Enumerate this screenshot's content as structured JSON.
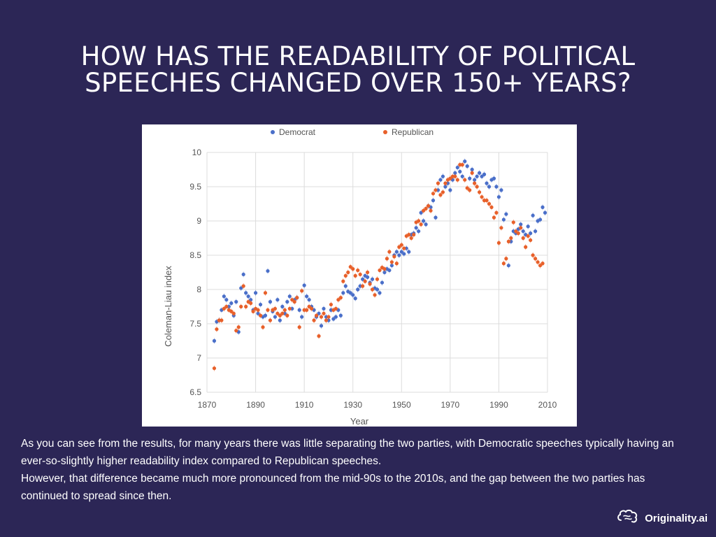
{
  "title": {
    "line1": "HOW HAS THE READABILITY OF POLITICAL",
    "line2": "SPEECHES CHANGED OVER 150+ YEARS?"
  },
  "body": {
    "para1": "As you can see from the results, for many years there was little separating the two parties, with Democratic speeches typically having an ever-so-slightly higher readability index compared to Republican speeches.",
    "para2": "However, that difference became much more pronounced from the mid-90s to the 2010s, and the gap between the two parties has continued to spread since then."
  },
  "brand": {
    "name": "Originality.ai",
    "icon": "brain-icon"
  },
  "colors": {
    "democrat": "#4a6fc9",
    "republican": "#e8602a",
    "background": "#2c2656"
  },
  "chart_data": {
    "type": "scatter",
    "title": "",
    "xlabel": "Year",
    "ylabel": "Coleman-Liau index",
    "xlim": [
      1870,
      2010
    ],
    "ylim": [
      6.5,
      10
    ],
    "xticks": [
      "1870",
      "1890",
      "1910",
      "1930",
      "1950",
      "1970",
      "1990",
      "2010"
    ],
    "yticks": [
      "6.5",
      "7",
      "7.5",
      "8",
      "8.5",
      "9",
      "9.5",
      "10"
    ],
    "legend": "top",
    "series": [
      {
        "name": "Democrat",
        "points": [
          [
            1873,
            7.25
          ],
          [
            1874,
            7.53
          ],
          [
            1875,
            7.55
          ],
          [
            1876,
            7.7
          ],
          [
            1877,
            7.9
          ],
          [
            1878,
            7.85
          ],
          [
            1879,
            7.75
          ],
          [
            1880,
            7.8
          ],
          [
            1881,
            7.62
          ],
          [
            1882,
            7.82
          ],
          [
            1883,
            7.38
          ],
          [
            1884,
            8.02
          ],
          [
            1885,
            8.22
          ],
          [
            1886,
            7.95
          ],
          [
            1887,
            7.9
          ],
          [
            1888,
            7.85
          ],
          [
            1889,
            7.7
          ],
          [
            1890,
            7.95
          ],
          [
            1891,
            7.65
          ],
          [
            1892,
            7.78
          ],
          [
            1893,
            7.6
          ],
          [
            1894,
            7.62
          ],
          [
            1895,
            8.27
          ],
          [
            1896,
            7.82
          ],
          [
            1897,
            7.68
          ],
          [
            1898,
            7.6
          ],
          [
            1899,
            7.85
          ],
          [
            1900,
            7.55
          ],
          [
            1901,
            7.75
          ],
          [
            1902,
            7.65
          ],
          [
            1903,
            7.82
          ],
          [
            1904,
            7.9
          ],
          [
            1905,
            7.72
          ],
          [
            1906,
            7.85
          ],
          [
            1907,
            7.88
          ],
          [
            1908,
            7.7
          ],
          [
            1909,
            7.6
          ],
          [
            1910,
            8.06
          ],
          [
            1911,
            7.9
          ],
          [
            1912,
            7.85
          ],
          [
            1913,
            7.75
          ],
          [
            1914,
            7.7
          ],
          [
            1915,
            7.6
          ],
          [
            1916,
            7.65
          ],
          [
            1917,
            7.47
          ],
          [
            1918,
            7.72
          ],
          [
            1919,
            7.6
          ],
          [
            1920,
            7.55
          ],
          [
            1921,
            7.7
          ],
          [
            1922,
            7.57
          ],
          [
            1923,
            7.6
          ],
          [
            1924,
            7.7
          ],
          [
            1925,
            7.62
          ],
          [
            1926,
            7.95
          ],
          [
            1927,
            8.05
          ],
          [
            1928,
            7.97
          ],
          [
            1929,
            7.95
          ],
          [
            1930,
            7.92
          ],
          [
            1931,
            7.87
          ],
          [
            1932,
            8.0
          ],
          [
            1933,
            8.05
          ],
          [
            1934,
            8.15
          ],
          [
            1935,
            8.2
          ],
          [
            1936,
            8.18
          ],
          [
            1937,
            8.1
          ],
          [
            1938,
            8.15
          ],
          [
            1939,
            8.02
          ],
          [
            1940,
            8.0
          ],
          [
            1941,
            7.95
          ],
          [
            1942,
            8.1
          ],
          [
            1943,
            8.25
          ],
          [
            1944,
            8.3
          ],
          [
            1945,
            8.28
          ],
          [
            1946,
            8.35
          ],
          [
            1947,
            8.5
          ],
          [
            1948,
            8.55
          ],
          [
            1949,
            8.5
          ],
          [
            1950,
            8.55
          ],
          [
            1951,
            8.52
          ],
          [
            1952,
            8.6
          ],
          [
            1953,
            8.55
          ],
          [
            1954,
            8.8
          ],
          [
            1955,
            8.82
          ],
          [
            1956,
            8.9
          ],
          [
            1957,
            8.85
          ],
          [
            1958,
            9.12
          ],
          [
            1959,
            9.0
          ],
          [
            1960,
            8.95
          ],
          [
            1961,
            9.22
          ],
          [
            1962,
            9.2
          ],
          [
            1963,
            9.3
          ],
          [
            1964,
            9.05
          ],
          [
            1965,
            9.45
          ],
          [
            1966,
            9.6
          ],
          [
            1967,
            9.65
          ],
          [
            1968,
            9.5
          ],
          [
            1969,
            9.55
          ],
          [
            1970,
            9.45
          ],
          [
            1971,
            9.6
          ],
          [
            1972,
            9.7
          ],
          [
            1973,
            9.78
          ],
          [
            1974,
            9.72
          ],
          [
            1975,
            9.65
          ],
          [
            1976,
            9.87
          ],
          [
            1977,
            9.8
          ],
          [
            1978,
            9.62
          ],
          [
            1979,
            9.75
          ],
          [
            1980,
            9.6
          ],
          [
            1981,
            9.65
          ],
          [
            1982,
            9.7
          ],
          [
            1983,
            9.65
          ],
          [
            1984,
            9.68
          ],
          [
            1985,
            9.55
          ],
          [
            1986,
            9.5
          ],
          [
            1987,
            9.6
          ],
          [
            1988,
            9.62
          ],
          [
            1989,
            9.5
          ],
          [
            1990,
            9.35
          ],
          [
            1991,
            9.45
          ],
          [
            1992,
            9.02
          ],
          [
            1993,
            9.1
          ],
          [
            1994,
            8.35
          ],
          [
            1995,
            8.7
          ],
          [
            1996,
            8.85
          ],
          [
            1997,
            8.82
          ],
          [
            1998,
            8.88
          ],
          [
            1999,
            8.95
          ],
          [
            2000,
            8.85
          ],
          [
            2001,
            8.8
          ],
          [
            2002,
            8.92
          ],
          [
            2003,
            8.82
          ],
          [
            2004,
            9.08
          ],
          [
            2005,
            8.85
          ],
          [
            2006,
            9.0
          ],
          [
            2007,
            9.02
          ],
          [
            2008,
            9.2
          ],
          [
            2009,
            9.12
          ]
        ]
      },
      {
        "name": "Republican",
        "points": [
          [
            1873,
            6.85
          ],
          [
            1874,
            7.42
          ],
          [
            1875,
            7.55
          ],
          [
            1876,
            7.55
          ],
          [
            1877,
            7.72
          ],
          [
            1878,
            7.75
          ],
          [
            1879,
            7.7
          ],
          [
            1880,
            7.68
          ],
          [
            1881,
            7.65
          ],
          [
            1882,
            7.4
          ],
          [
            1883,
            7.45
          ],
          [
            1884,
            7.75
          ],
          [
            1885,
            8.05
          ],
          [
            1886,
            7.75
          ],
          [
            1887,
            7.82
          ],
          [
            1888,
            7.8
          ],
          [
            1889,
            7.68
          ],
          [
            1890,
            7.72
          ],
          [
            1891,
            7.7
          ],
          [
            1892,
            7.62
          ],
          [
            1893,
            7.45
          ],
          [
            1894,
            7.95
          ],
          [
            1895,
            7.7
          ],
          [
            1896,
            7.55
          ],
          [
            1897,
            7.7
          ],
          [
            1898,
            7.72
          ],
          [
            1899,
            7.65
          ],
          [
            1900,
            7.62
          ],
          [
            1901,
            7.65
          ],
          [
            1902,
            7.7
          ],
          [
            1903,
            7.62
          ],
          [
            1904,
            7.72
          ],
          [
            1905,
            7.85
          ],
          [
            1906,
            7.82
          ],
          [
            1907,
            7.88
          ],
          [
            1908,
            7.45
          ],
          [
            1909,
            7.98
          ],
          [
            1910,
            7.7
          ],
          [
            1911,
            7.7
          ],
          [
            1912,
            7.75
          ],
          [
            1913,
            7.72
          ],
          [
            1914,
            7.55
          ],
          [
            1915,
            7.62
          ],
          [
            1916,
            7.32
          ],
          [
            1917,
            7.6
          ],
          [
            1918,
            7.65
          ],
          [
            1919,
            7.55
          ],
          [
            1920,
            7.6
          ],
          [
            1921,
            7.78
          ],
          [
            1922,
            7.7
          ],
          [
            1923,
            7.72
          ],
          [
            1924,
            7.85
          ],
          [
            1925,
            7.88
          ],
          [
            1926,
            8.12
          ],
          [
            1927,
            8.2
          ],
          [
            1928,
            8.25
          ],
          [
            1929,
            8.33
          ],
          [
            1930,
            8.3
          ],
          [
            1931,
            8.2
          ],
          [
            1932,
            8.28
          ],
          [
            1933,
            8.22
          ],
          [
            1934,
            8.05
          ],
          [
            1935,
            8.12
          ],
          [
            1936,
            8.25
          ],
          [
            1937,
            8.08
          ],
          [
            1938,
            8.0
          ],
          [
            1939,
            7.92
          ],
          [
            1940,
            8.15
          ],
          [
            1941,
            8.28
          ],
          [
            1942,
            8.32
          ],
          [
            1943,
            8.3
          ],
          [
            1944,
            8.45
          ],
          [
            1945,
            8.55
          ],
          [
            1946,
            8.4
          ],
          [
            1947,
            8.48
          ],
          [
            1948,
            8.38
          ],
          [
            1949,
            8.62
          ],
          [
            1950,
            8.65
          ],
          [
            1951,
            8.6
          ],
          [
            1952,
            8.78
          ],
          [
            1953,
            8.8
          ],
          [
            1954,
            8.75
          ],
          [
            1955,
            8.8
          ],
          [
            1956,
            8.98
          ],
          [
            1957,
            9.0
          ],
          [
            1958,
            8.95
          ],
          [
            1959,
            9.15
          ],
          [
            1960,
            9.18
          ],
          [
            1961,
            9.22
          ],
          [
            1962,
            9.15
          ],
          [
            1963,
            9.4
          ],
          [
            1964,
            9.45
          ],
          [
            1965,
            9.55
          ],
          [
            1966,
            9.38
          ],
          [
            1967,
            9.42
          ],
          [
            1968,
            9.55
          ],
          [
            1969,
            9.6
          ],
          [
            1970,
            9.62
          ],
          [
            1971,
            9.65
          ],
          [
            1972,
            9.65
          ],
          [
            1973,
            9.6
          ],
          [
            1974,
            9.82
          ],
          [
            1975,
            9.82
          ],
          [
            1976,
            9.6
          ],
          [
            1977,
            9.48
          ],
          [
            1978,
            9.45
          ],
          [
            1979,
            9.7
          ],
          [
            1980,
            9.55
          ],
          [
            1981,
            9.5
          ],
          [
            1982,
            9.42
          ],
          [
            1983,
            9.35
          ],
          [
            1984,
            9.3
          ],
          [
            1985,
            9.3
          ],
          [
            1986,
            9.25
          ],
          [
            1987,
            9.2
          ],
          [
            1988,
            9.05
          ],
          [
            1989,
            9.12
          ],
          [
            1990,
            8.68
          ],
          [
            1991,
            8.9
          ],
          [
            1992,
            8.38
          ],
          [
            1993,
            8.45
          ],
          [
            1994,
            8.7
          ],
          [
            1995,
            8.75
          ],
          [
            1996,
            8.98
          ],
          [
            1997,
            8.85
          ],
          [
            1998,
            8.82
          ],
          [
            1999,
            8.9
          ],
          [
            2000,
            8.75
          ],
          [
            2001,
            8.62
          ],
          [
            2002,
            8.78
          ],
          [
            2003,
            8.72
          ],
          [
            2004,
            8.5
          ],
          [
            2005,
            8.45
          ],
          [
            2006,
            8.4
          ],
          [
            2007,
            8.35
          ],
          [
            2008,
            8.38
          ]
        ]
      }
    ]
  }
}
